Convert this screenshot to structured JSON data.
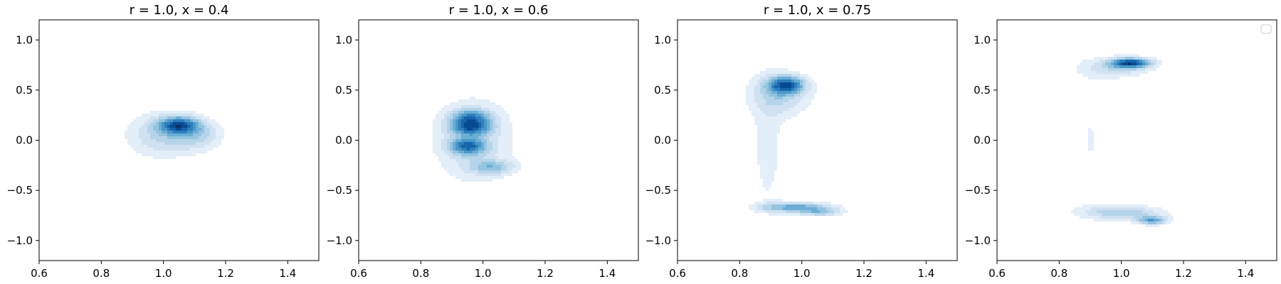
{
  "chart_data": [
    {
      "type": "contour",
      "title": "r = 1.0, x = 0.4",
      "xlim": [
        0.6,
        1.5
      ],
      "ylim": [
        -1.2,
        1.2
      ],
      "xticks": [
        "0.6",
        "0.8",
        "1.0",
        "1.2",
        "1.4"
      ],
      "yticks": [
        "−1.0",
        "−0.5",
        "0.0",
        "0.5",
        "1.0"
      ],
      "colormap": "Blues",
      "levels": 10,
      "background_density": 0.08,
      "background_extent": {
        "x": [
          0.6,
          1.5
        ],
        "y": [
          -1.15,
          1.2
        ]
      },
      "peaks": [
        {
          "x": 1.05,
          "y": 0.15,
          "sx": 0.045,
          "sy": 0.06,
          "w": 1.0
        },
        {
          "x": 1.0,
          "y": 0.05,
          "sx": 0.08,
          "sy": 0.15,
          "w": 0.45
        },
        {
          "x": 1.12,
          "y": 0.05,
          "sx": 0.05,
          "sy": 0.1,
          "w": 0.35
        }
      ]
    },
    {
      "type": "contour",
      "title": "r = 1.0, x = 0.6",
      "xlim": [
        0.6,
        1.5
      ],
      "ylim": [
        -1.2,
        1.2
      ],
      "xticks": [
        "0.6",
        "0.8",
        "1.0",
        "1.2",
        "1.4"
      ],
      "yticks": [
        "−1.0",
        "−0.5",
        "0.0",
        "0.5",
        "1.0"
      ],
      "colormap": "Blues",
      "levels": 10,
      "background_density": 0.1,
      "background_extent": {
        "x": [
          0.6,
          1.5
        ],
        "y": [
          -1.05,
          1.2
        ]
      },
      "peaks": [
        {
          "x": 0.96,
          "y": 0.22,
          "sx": 0.045,
          "sy": 0.06,
          "w": 0.9
        },
        {
          "x": 0.96,
          "y": 0.12,
          "sx": 0.045,
          "sy": 0.05,
          "w": 0.85
        },
        {
          "x": 0.95,
          "y": -0.06,
          "sx": 0.04,
          "sy": 0.06,
          "w": 0.95
        },
        {
          "x": 1.03,
          "y": -0.27,
          "sx": 0.05,
          "sy": 0.05,
          "w": 0.55
        },
        {
          "x": 0.97,
          "y": 0.0,
          "sx": 0.09,
          "sy": 0.3,
          "w": 0.4
        }
      ]
    },
    {
      "type": "contour",
      "title": "r = 1.0, x = 0.75",
      "xlim": [
        0.6,
        1.5
      ],
      "ylim": [
        -1.2,
        1.2
      ],
      "xticks": [
        "0.6",
        "0.8",
        "1.0",
        "1.2",
        "1.4"
      ],
      "yticks": [
        "−1.0",
        "−0.5",
        "0.0",
        "0.5",
        "1.0"
      ],
      "colormap": "Blues",
      "levels": 10,
      "background_density": 0.06,
      "background_extent": {
        "x": [
          0.6,
          1.5
        ],
        "y": [
          -1.2,
          1.2
        ]
      },
      "peaks": [
        {
          "x": 0.95,
          "y": 0.55,
          "sx": 0.04,
          "sy": 0.06,
          "w": 1.0
        },
        {
          "x": 0.93,
          "y": 0.45,
          "sx": 0.07,
          "sy": 0.15,
          "w": 0.4
        },
        {
          "x": 0.98,
          "y": -0.67,
          "sx": 0.08,
          "sy": 0.035,
          "w": 0.75
        },
        {
          "x": 1.06,
          "y": -0.72,
          "sx": 0.05,
          "sy": 0.03,
          "w": 0.45
        },
        {
          "x": 0.89,
          "y": -0.1,
          "sx": 0.04,
          "sy": 0.5,
          "w": 0.18
        }
      ]
    },
    {
      "type": "contour",
      "title": "",
      "xlim": [
        0.6,
        1.5
      ],
      "ylim": [
        -1.2,
        1.2
      ],
      "xticks": [
        "0.6",
        "0.8",
        "1.0",
        "1.2",
        "1.4"
      ],
      "yticks": [
        "−1.0",
        "−0.5",
        "0.0",
        "0.5",
        "1.0"
      ],
      "colormap": "Blues",
      "levels": 10,
      "background_density": 0.05,
      "background_extent": {
        "x": [
          0.6,
          1.5
        ],
        "y": [
          -1.2,
          1.2
        ]
      },
      "peaks": [
        {
          "x": 1.03,
          "y": 0.77,
          "sx": 0.045,
          "sy": 0.035,
          "w": 1.0
        },
        {
          "x": 0.98,
          "y": 0.72,
          "sx": 0.08,
          "sy": 0.07,
          "w": 0.3
        },
        {
          "x": 1.1,
          "y": -0.8,
          "sx": 0.035,
          "sy": 0.03,
          "w": 0.65
        },
        {
          "x": 1.0,
          "y": -0.72,
          "sx": 0.09,
          "sy": 0.05,
          "w": 0.45
        },
        {
          "x": 0.9,
          "y": 0.0,
          "sx": 0.05,
          "sy": 0.5,
          "w": 0.12
        }
      ],
      "legend": {
        "placement": "top-right",
        "entries": []
      }
    }
  ]
}
